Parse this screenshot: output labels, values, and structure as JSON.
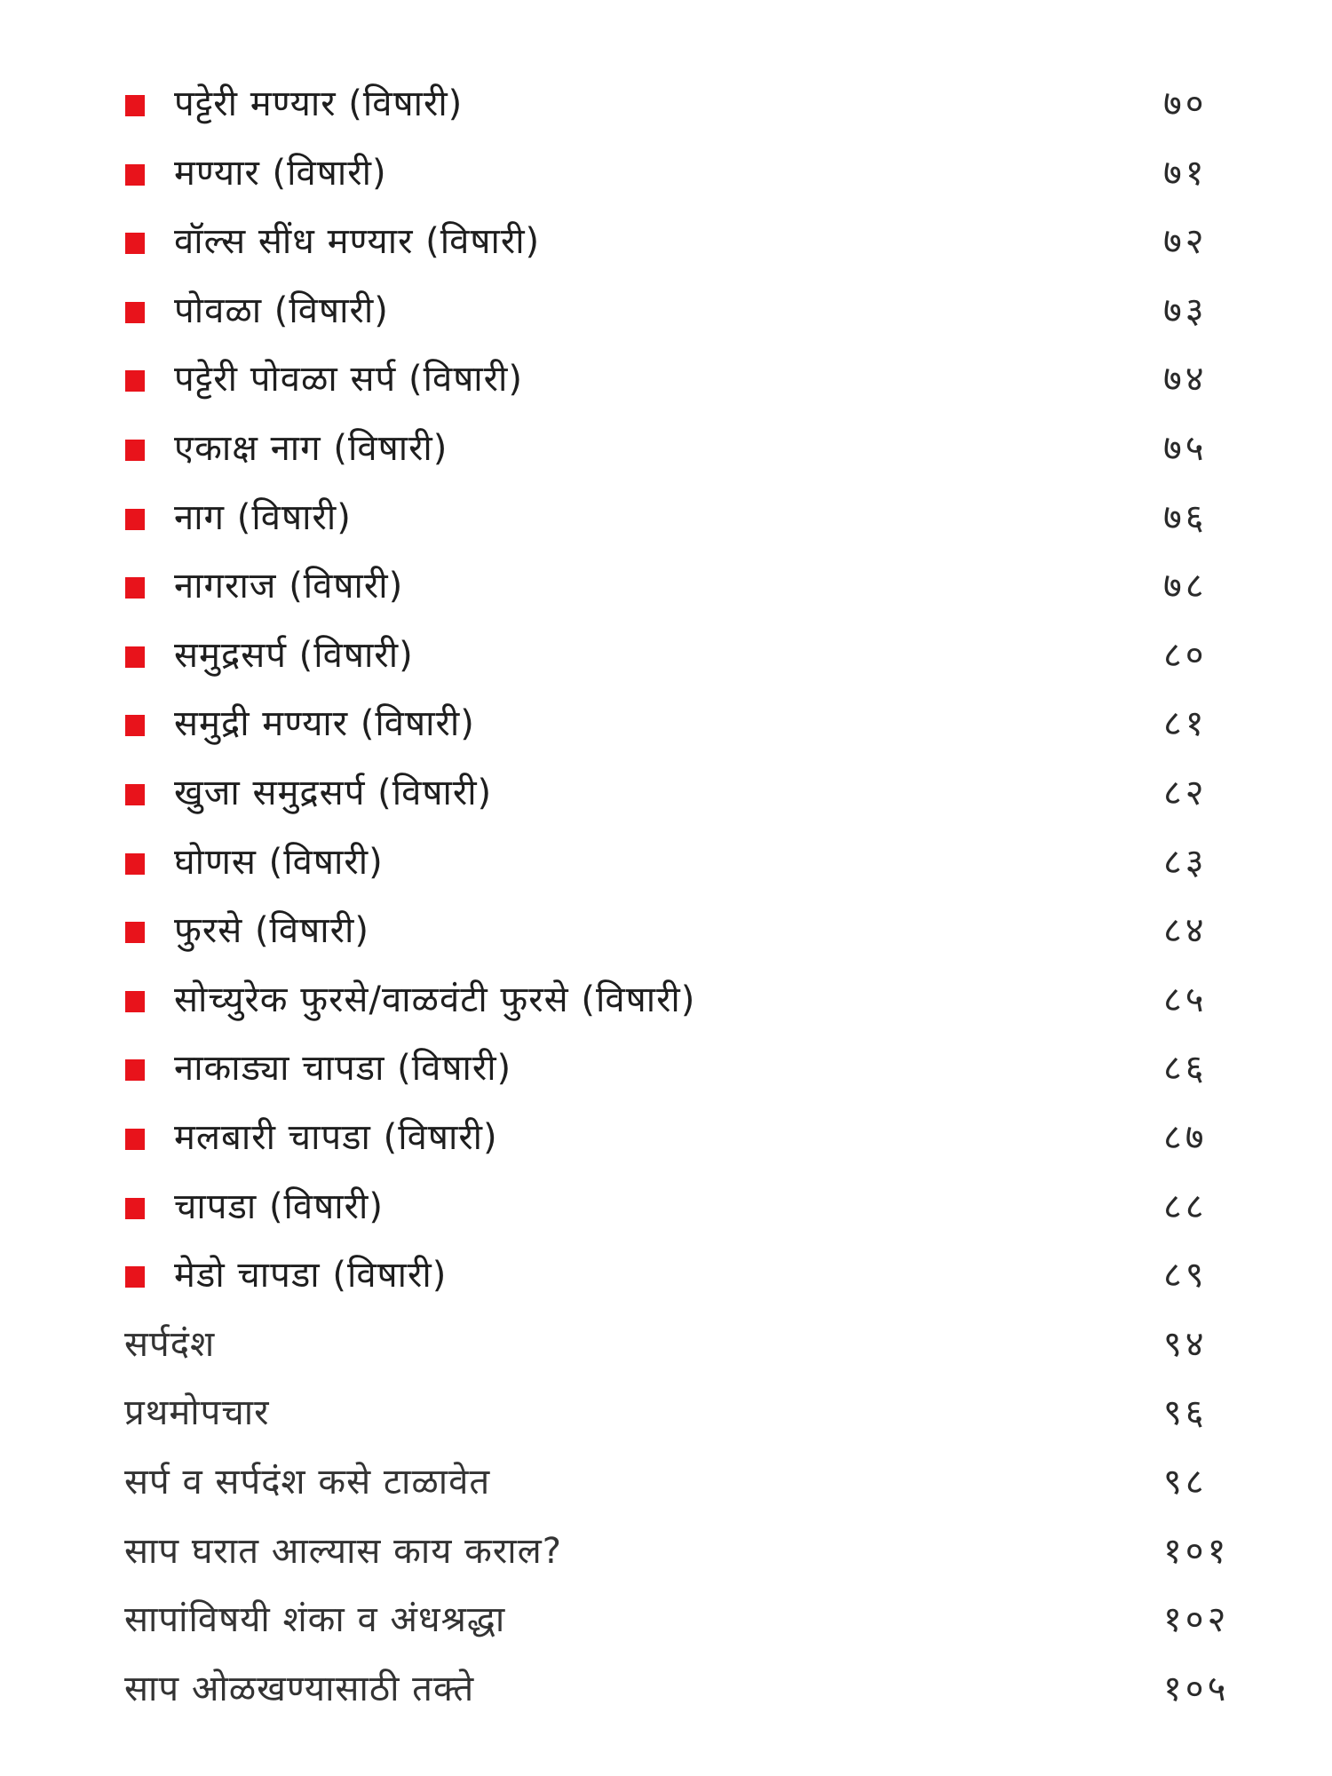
{
  "colors": {
    "bullet": "#e8131b",
    "text": "#1e1e1e"
  },
  "toc": {
    "entries": [
      {
        "title": "पट्टेरी मण्यार (विषारी)",
        "page": "७०",
        "bullet": true
      },
      {
        "title": "मण्यार (विषारी)",
        "page": "७१",
        "bullet": true
      },
      {
        "title": "वॉल्स सींध मण्यार (विषारी)",
        "page": "७२",
        "bullet": true
      },
      {
        "title": "पोवळा (विषारी)",
        "page": "७३",
        "bullet": true
      },
      {
        "title": "पट्टेरी पोवळा सर्प (विषारी)",
        "page": "७४",
        "bullet": true
      },
      {
        "title": "एकाक्ष नाग (विषारी)",
        "page": "७५",
        "bullet": true
      },
      {
        "title": "नाग (विषारी)",
        "page": "७६",
        "bullet": true
      },
      {
        "title": "नागराज (विषारी)",
        "page": "७८",
        "bullet": true
      },
      {
        "title": "समुद्रसर्प (विषारी)",
        "page": "८०",
        "bullet": true
      },
      {
        "title": "समुद्री मण्यार (विषारी)",
        "page": "८१",
        "bullet": true
      },
      {
        "title": "खुजा समुद्रसर्प (विषारी)",
        "page": "८२",
        "bullet": true
      },
      {
        "title": "घोणस (विषारी)",
        "page": "८३",
        "bullet": true
      },
      {
        "title": "फुरसे (विषारी)",
        "page": "८४",
        "bullet": true
      },
      {
        "title": "सोच्युरेक फुरसे/वाळवंटी फुरसे (विषारी)",
        "page": "८५",
        "bullet": true
      },
      {
        "title": "नाकाड्या चापडा (विषारी)",
        "page": "८६",
        "bullet": true
      },
      {
        "title": "मलबारी चापडा (विषारी)",
        "page": "८७",
        "bullet": true
      },
      {
        "title": "चापडा (विषारी)",
        "page": "८८",
        "bullet": true
      },
      {
        "title": "मेडो चापडा (विषारी)",
        "page": "८९",
        "bullet": true
      },
      {
        "title": "सर्पदंश",
        "page": "९४",
        "bullet": false
      },
      {
        "title": "प्रथमोपचार",
        "page": "९६",
        "bullet": false
      },
      {
        "title": "सर्प व सर्पदंश कसे टाळावेत",
        "page": "९८",
        "bullet": false
      },
      {
        "title": "साप घरात आल्यास काय कराल?",
        "page": "१०१",
        "bullet": false
      },
      {
        "title": "सापांविषयी शंका व अंधश्रद्धा",
        "page": "१०२",
        "bullet": false
      },
      {
        "title": "साप ओळखण्यासाठी तक्ते",
        "page": "१०५",
        "bullet": false
      }
    ]
  }
}
